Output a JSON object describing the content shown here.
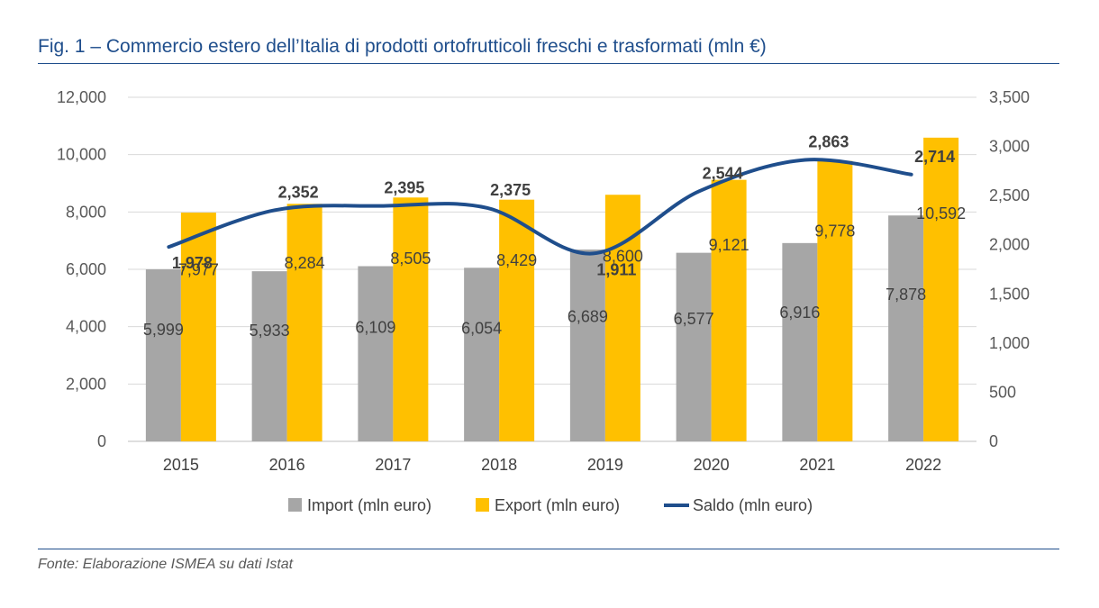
{
  "title": "Fig. 1 – Commercio estero dell’Italia di prodotti ortofrutticoli freschi e trasformati (mln €)",
  "source": "Fonte: Elaborazione ISMEA su dati Istat",
  "chart_data": {
    "type": "bar",
    "categories": [
      "2015",
      "2016",
      "2017",
      "2018",
      "2019",
      "2020",
      "2021",
      "2022"
    ],
    "series": [
      {
        "name": "Import (mln euro)",
        "type": "bar",
        "axis": "left",
        "color": "#a6a6a6",
        "values": [
          5999,
          5933,
          6109,
          6054,
          6689,
          6577,
          6916,
          7878
        ],
        "labels": [
          "5,999",
          "5,933",
          "6,109",
          "6,054",
          "6,689",
          "6,577",
          "6,916",
          "7,878"
        ]
      },
      {
        "name": "Export (mln euro)",
        "type": "bar",
        "axis": "left",
        "color": "#ffc000",
        "values": [
          7977,
          8284,
          8505,
          8429,
          8600,
          9121,
          9778,
          10592
        ],
        "labels": [
          "7,977",
          "8,284",
          "8,505",
          "8,429",
          "8,600",
          "9,121",
          "9,778",
          "10,592"
        ]
      },
      {
        "name": "Saldo (mln euro)",
        "type": "line",
        "axis": "right",
        "color": "#1f4e8c",
        "values": [
          1978,
          2352,
          2395,
          2375,
          1911,
          2544,
          2863,
          2714
        ],
        "labels": [
          "1,978",
          "2,352",
          "2,395",
          "2,375",
          "1,911",
          "2,544",
          "2,863",
          "2,714"
        ]
      }
    ],
    "y_left": {
      "min": 0,
      "max": 12000,
      "ticks": [
        "0",
        "2,000",
        "4,000",
        "6,000",
        "8,000",
        "10,000",
        "12,000"
      ]
    },
    "y_right": {
      "min": 0,
      "max": 3500,
      "ticks": [
        "0",
        "500",
        "1,000",
        "1,500",
        "2,000",
        "2,500",
        "3,000",
        "3,500"
      ]
    },
    "grid": true,
    "legend": "bottom"
  }
}
